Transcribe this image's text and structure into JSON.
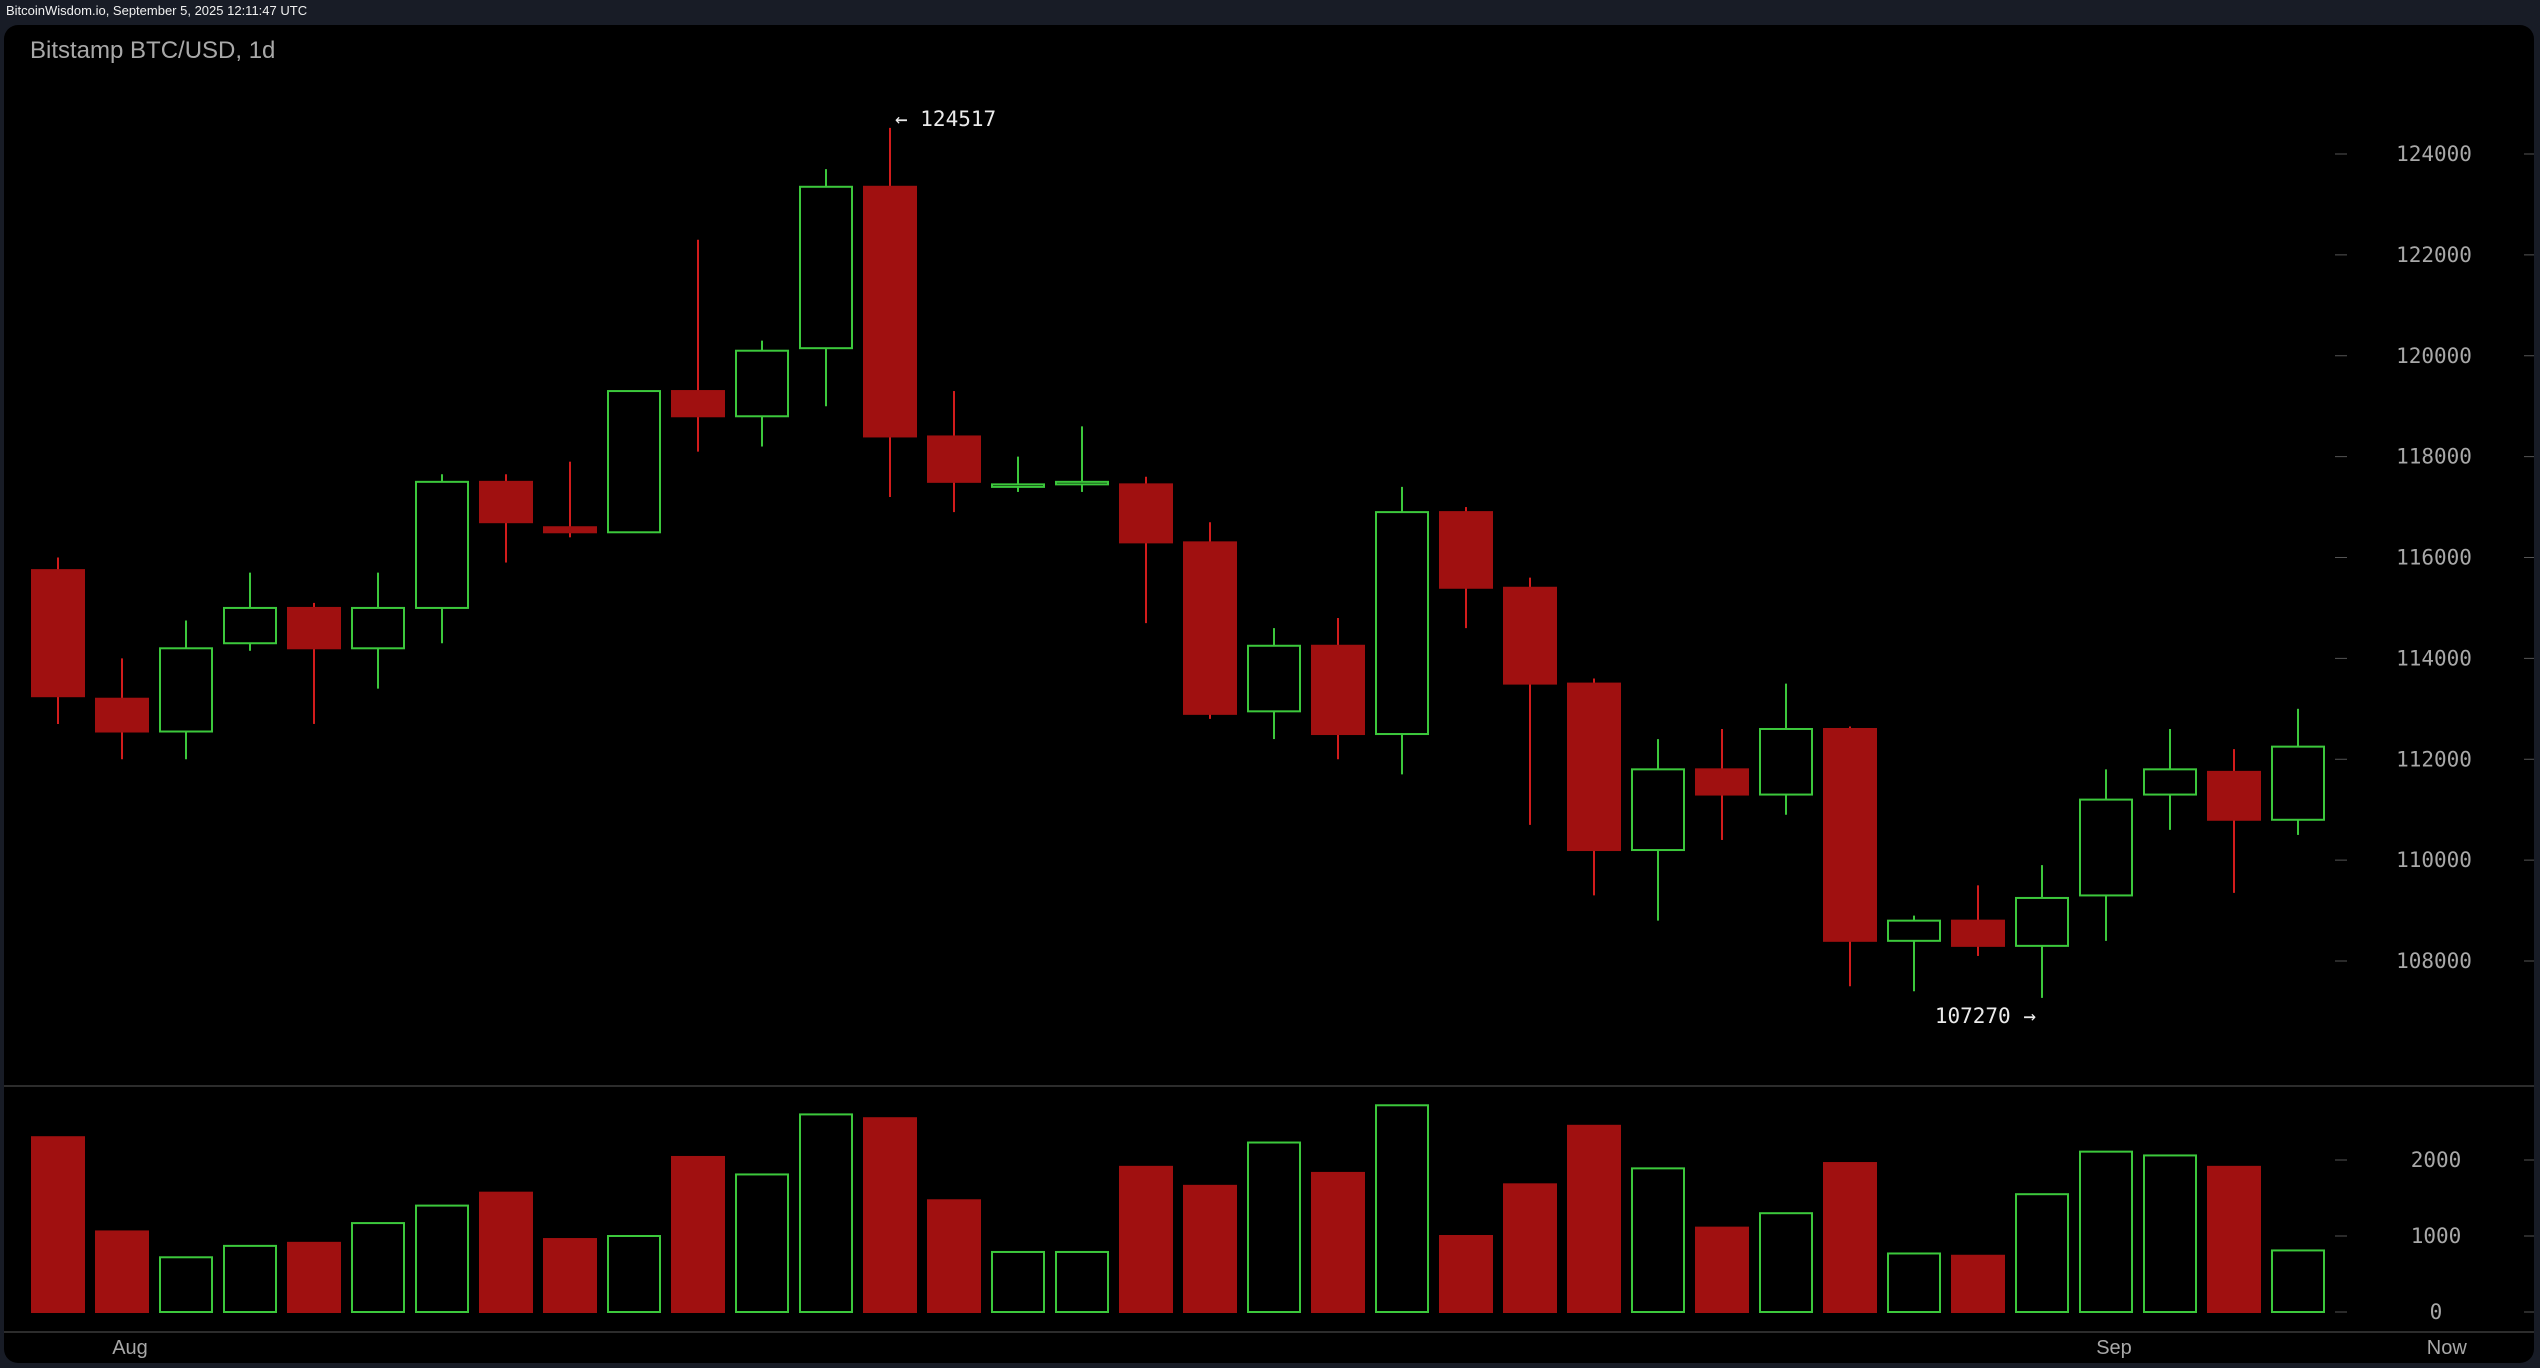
{
  "header": {
    "source_timestamp": "BitcoinWisdom.io, September 5, 2025 12:11:47 UTC"
  },
  "chart_title": "Bitstamp BTC/USD, 1d",
  "colors": {
    "up": "#3cc83c",
    "down": "#a01010",
    "down_wick": "#d21c1c",
    "axis_text": "#a8a8a8",
    "background": "#000000"
  },
  "chart_data": [
    {
      "type": "candlestick",
      "title": "Bitstamp BTC/USD, 1d",
      "ylim": [
        106000,
        126000
      ],
      "yticks": [
        108000,
        110000,
        112000,
        114000,
        116000,
        118000,
        120000,
        122000,
        124000
      ],
      "xticks": [
        {
          "label": "Aug",
          "index": 1
        },
        {
          "label": "Sep",
          "index": 32
        },
        {
          "label": "Now",
          "index": 37.2
        }
      ],
      "annotations": [
        {
          "text": "← 124517",
          "index": 13,
          "value": 124517
        },
        {
          "text": "107270 →",
          "index": 31,
          "value": 107270
        }
      ],
      "ohlc": [
        [
          115750,
          116000,
          112700,
          113250
        ],
        [
          113200,
          114000,
          112000,
          112550
        ],
        [
          112550,
          114750,
          112000,
          114200
        ],
        [
          114300,
          115700,
          114150,
          115000
        ],
        [
          115000,
          115100,
          112700,
          114200
        ],
        [
          114200,
          115700,
          113400,
          115000
        ],
        [
          115000,
          117650,
          114300,
          117500
        ],
        [
          117500,
          117650,
          115900,
          116700
        ],
        [
          116600,
          117900,
          116400,
          116500
        ],
        [
          116500,
          119300,
          116500,
          119300
        ],
        [
          119300,
          122300,
          118100,
          118800
        ],
        [
          118800,
          120300,
          118200,
          120100
        ],
        [
          120150,
          123700,
          119000,
          123350
        ],
        [
          123350,
          124517,
          117200,
          118400
        ],
        [
          118400,
          119300,
          116900,
          117500
        ],
        [
          117400,
          118000,
          117300,
          117450
        ],
        [
          117450,
          118600,
          117300,
          117500
        ],
        [
          117450,
          117600,
          114700,
          116300
        ],
        [
          116300,
          116700,
          112800,
          112900
        ],
        [
          112950,
          114600,
          112400,
          114250
        ],
        [
          114250,
          114800,
          112000,
          112500
        ],
        [
          112500,
          117400,
          111700,
          116900
        ],
        [
          116900,
          117000,
          114600,
          115400
        ],
        [
          115400,
          115600,
          110700,
          113500
        ],
        [
          113500,
          113600,
          109300,
          110200
        ],
        [
          110200,
          112400,
          108800,
          111800
        ],
        [
          111800,
          112600,
          110400,
          111300
        ],
        [
          111300,
          113500,
          110900,
          112600
        ],
        [
          112600,
          112650,
          107500,
          108400
        ],
        [
          108400,
          108900,
          107400,
          108800
        ],
        [
          108800,
          109500,
          108100,
          108300
        ],
        [
          108300,
          109900,
          107270,
          109250
        ],
        [
          109300,
          111800,
          108400,
          111200
        ],
        [
          111300,
          112600,
          110600,
          111800
        ],
        [
          111750,
          112200,
          109350,
          110800
        ],
        [
          110800,
          113000,
          110500,
          112250
        ]
      ]
    },
    {
      "type": "bar",
      "title": "Volume",
      "ylim": [
        0,
        3000
      ],
      "yticks": [
        0,
        1000,
        2000
      ],
      "values": [
        2300,
        1060,
        720,
        870,
        910,
        1170,
        1400,
        1570,
        960,
        1000,
        2040,
        1810,
        2600,
        2550,
        1470,
        790,
        790,
        1910,
        1660,
        2230,
        1830,
        2720,
        1000,
        1680,
        2450,
        1890,
        1110,
        1300,
        1960,
        770,
        740,
        1550,
        2110,
        2060,
        1910,
        810
      ]
    }
  ]
}
